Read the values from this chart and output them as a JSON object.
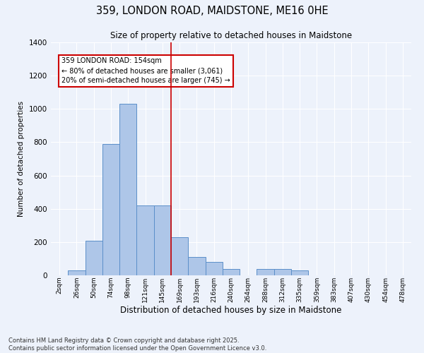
{
  "title1": "359, LONDON ROAD, MAIDSTONE, ME16 0HE",
  "title2": "Size of property relative to detached houses in Maidstone",
  "xlabel": "Distribution of detached houses by size in Maidstone",
  "ylabel": "Number of detached properties",
  "categories": [
    "2sqm",
    "26sqm",
    "50sqm",
    "74sqm",
    "98sqm",
    "121sqm",
    "145sqm",
    "169sqm",
    "193sqm",
    "216sqm",
    "240sqm",
    "264sqm",
    "288sqm",
    "312sqm",
    "335sqm",
    "359sqm",
    "383sqm",
    "407sqm",
    "430sqm",
    "454sqm",
    "478sqm"
  ],
  "values": [
    0,
    30,
    210,
    790,
    1030,
    420,
    420,
    230,
    110,
    80,
    40,
    0,
    40,
    40,
    30,
    0,
    0,
    0,
    0,
    0,
    0
  ],
  "bar_color": "#aec6e8",
  "bar_edge_color": "#5b8fc9",
  "vline_x": 6.5,
  "vline_color": "#cc0000",
  "annotation_text": "359 LONDON ROAD: 154sqm\n← 80% of detached houses are smaller (3,061)\n20% of semi-detached houses are larger (745) →",
  "annotation_box_color": "#ffffff",
  "annotation_box_edge_color": "#cc0000",
  "bg_color": "#edf2fb",
  "grid_color": "#ffffff",
  "footer_text": "Contains HM Land Registry data © Crown copyright and database right 2025.\nContains public sector information licensed under the Open Government Licence v3.0.",
  "ylim": [
    0,
    1400
  ],
  "yticks": [
    0,
    200,
    400,
    600,
    800,
    1000,
    1200,
    1400
  ]
}
